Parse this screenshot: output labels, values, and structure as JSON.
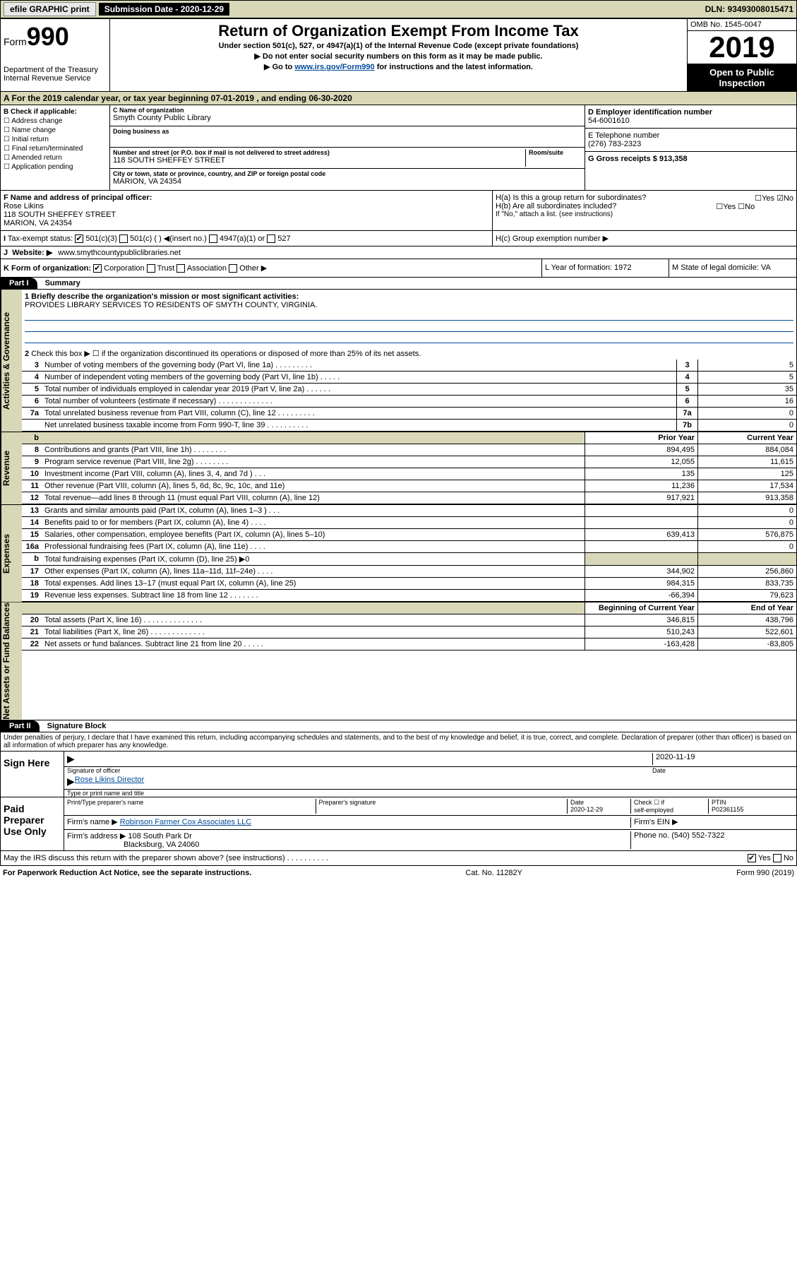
{
  "topbar": {
    "efile": "efile GRAPHIC print",
    "subdate_lbl": "Submission Date - 2020-12-29",
    "dln": "DLN: 93493008015471"
  },
  "header": {
    "form_prefix": "Form",
    "form_num": "990",
    "dept": "Department of the Treasury Internal Revenue Service",
    "title": "Return of Organization Exempt From Income Tax",
    "sub1": "Under section 501(c), 527, or 4947(a)(1) of the Internal Revenue Code (except private foundations)",
    "sub2": "▶ Do not enter social security numbers on this form as it may be made public.",
    "sub3_pre": "▶ Go to ",
    "sub3_link": "www.irs.gov/Form990",
    "sub3_post": " for instructions and the latest information.",
    "omb": "OMB No. 1545-0047",
    "year": "2019",
    "opi": "Open to Public Inspection"
  },
  "period": "A For the 2019 calendar year, or tax year beginning 07-01-2019    , and ending 06-30-2020",
  "sectionB": {
    "hdr": "B Check if applicable:",
    "items": [
      "Address change",
      "Name change",
      "Initial return",
      "Final return/terminated",
      "Amended return",
      "Application pending"
    ]
  },
  "sectionC": {
    "name_lbl": "C Name of organization",
    "name": "Smyth County Public Library",
    "dba_lbl": "Doing business as",
    "addr_lbl": "Number and street (or P.O. box if mail is not delivered to street address)",
    "room_lbl": "Room/suite",
    "addr": "118 SOUTH SHEFFEY STREET",
    "city_lbl": "City or town, state or province, country, and ZIP or foreign postal code",
    "city": "MARION, VA  24354"
  },
  "sectionD": {
    "lbl": "D Employer identification number",
    "val": "54-6001610"
  },
  "sectionE": {
    "lbl": "E Telephone number",
    "val": "(276) 783-2323"
  },
  "sectionG": {
    "lbl": "G Gross receipts $ 913,358"
  },
  "sectionF": {
    "lbl": "F  Name and address of principal officer:",
    "name": "Rose Likins",
    "addr1": "118 SOUTH SHEFFEY STREET",
    "addr2": "MARION, VA  24354"
  },
  "sectionH": {
    "a": "H(a)  Is this a group return for subordinates?",
    "b": "H(b)  Are all subordinates included?",
    "b_note": "If \"No,\" attach a list. (see instructions)",
    "c": "H(c)  Group exemption number ▶"
  },
  "sectionI": {
    "lbl": "Tax-exempt status:",
    "c3": "501(c)(3)",
    "c": "501(c) (   ) ◀(insert no.)",
    "a1": "4947(a)(1) or",
    "s527": "527"
  },
  "sectionJ": {
    "lbl": "Website: ▶",
    "val": "www.smythcountypubliclibraries.net"
  },
  "sectionK": {
    "lbl": "K Form of organization:",
    "corp": "Corporation",
    "trust": "Trust",
    "assoc": "Association",
    "other": "Other ▶"
  },
  "sectionL": {
    "lbl": "L Year of formation: 1972"
  },
  "sectionM": {
    "lbl": "M State of legal domicile: VA"
  },
  "part1": {
    "hdr": "Part I",
    "title": "Summary",
    "l1_lbl": "1  Briefly describe the organization's mission or most significant activities:",
    "l1_val": "PROVIDES LIBRARY SERVICES TO RESIDENTS OF SMYTH COUNTY, VIRGINIA.",
    "l2": "Check this box ▶ ☐  if the organization discontinued its operations or disposed of more than 25% of its net assets.",
    "lines_gov": [
      {
        "n": "3",
        "d": "Number of voting members of the governing body (Part VI, line 1a)   .    .    .    .    .    .    .    .    .",
        "box": "3",
        "v": "5"
      },
      {
        "n": "4",
        "d": "Number of independent voting members of the governing body (Part VI, line 1b)    .    .    .    .    .",
        "box": "4",
        "v": "5"
      },
      {
        "n": "5",
        "d": "Total number of individuals employed in calendar year 2019 (Part V, line 2a)    .    .    .    .    .    .",
        "box": "5",
        "v": "35"
      },
      {
        "n": "6",
        "d": "Total number of volunteers (estimate if necessary)    .    .    .    .    .    .    .    .    .    .    .    .    .",
        "box": "6",
        "v": "16"
      },
      {
        "n": "7a",
        "d": "Total unrelated business revenue from Part VIII, column (C), line 12    .    .    .    .    .    .    .    .    .",
        "box": "7a",
        "v": "0"
      },
      {
        "n": "",
        "d": "Net unrelated business taxable income from Form 990-T, line 39    .    .    .    .    .    .    .    .    .    .",
        "box": "7b",
        "v": "0"
      }
    ],
    "col_hdrs": {
      "b": "b",
      "prior": "Prior Year",
      "current": "Current Year"
    },
    "lines_rev": [
      {
        "n": "8",
        "d": "Contributions and grants (Part VIII, line 1h)    .    .    .    .    .    .    .    .",
        "p": "894,495",
        "c": "884,084"
      },
      {
        "n": "9",
        "d": "Program service revenue (Part VIII, line 2g)    .    .    .    .    .    .    .    .",
        "p": "12,055",
        "c": "11,615"
      },
      {
        "n": "10",
        "d": "Investment income (Part VIII, column (A), lines 3, 4, and 7d )    .    .    .",
        "p": "135",
        "c": "125"
      },
      {
        "n": "11",
        "d": "Other revenue (Part VIII, column (A), lines 5, 6d, 8c, 9c, 10c, and 11e)",
        "p": "11,236",
        "c": "17,534"
      },
      {
        "n": "12",
        "d": "Total revenue—add lines 8 through 11 (must equal Part VIII, column (A), line 12)",
        "p": "917,921",
        "c": "913,358"
      }
    ],
    "lines_exp": [
      {
        "n": "13",
        "d": "Grants and similar amounts paid (Part IX, column (A), lines 1–3 )    .    .    .",
        "p": "",
        "c": "0"
      },
      {
        "n": "14",
        "d": "Benefits paid to or for members (Part IX, column (A), line 4)    .    .    .    .",
        "p": "",
        "c": "0"
      },
      {
        "n": "15",
        "d": "Salaries, other compensation, employee benefits (Part IX, column (A), lines 5–10)",
        "p": "639,413",
        "c": "576,875"
      },
      {
        "n": "16a",
        "d": "Professional fundraising fees (Part IX, column (A), line 11e)    .    .    .    .",
        "p": "",
        "c": "0"
      },
      {
        "n": "b",
        "d": "Total fundraising expenses (Part IX, column (D), line 25) ▶0",
        "p": "",
        "c": ""
      },
      {
        "n": "17",
        "d": "Other expenses (Part IX, column (A), lines 11a–11d, 11f–24e)    .    .    .    .",
        "p": "344,902",
        "c": "256,860"
      },
      {
        "n": "18",
        "d": "Total expenses. Add lines 13–17 (must equal Part IX, column (A), line 25)",
        "p": "984,315",
        "c": "833,735"
      },
      {
        "n": "19",
        "d": "Revenue less expenses. Subtract line 18 from line 12    .    .    .    .    .    .    .",
        "p": "-66,394",
        "c": "79,623"
      }
    ],
    "col_hdrs2": {
      "prior": "Beginning of Current Year",
      "current": "End of Year"
    },
    "lines_net": [
      {
        "n": "20",
        "d": "Total assets (Part X, line 16)    .    .    .    .    .    .    .    .    .    .    .    .    .    .",
        "p": "346,815",
        "c": "438,796"
      },
      {
        "n": "21",
        "d": "Total liabilities (Part X, line 26)    .    .    .    .    .    .    .    .    .    .    .    .    .",
        "p": "510,243",
        "c": "522,601"
      },
      {
        "n": "22",
        "d": "Net assets or fund balances. Subtract line 21 from line 20    .    .    .    .    .",
        "p": "-163,428",
        "c": "-83,805"
      }
    ],
    "vtabs": {
      "gov": "Activities & Governance",
      "rev": "Revenue",
      "exp": "Expenses",
      "net": "Net Assets or Fund Balances"
    }
  },
  "part2": {
    "hdr": "Part II",
    "title": "Signature Block",
    "perjury": "Under penalties of perjury, I declare that I have examined this return, including accompanying schedules and statements, and to the best of my knowledge and belief, it is true, correct, and complete. Declaration of preparer (other than officer) is based on all information of which preparer has any knowledge.",
    "sign_here": "Sign Here",
    "sig_officer": "Signature of officer",
    "sig_date": "2020-11-19",
    "date_lbl": "Date",
    "typed_name": "Rose Likins  Director",
    "typed_lbl": "Type or print name and title",
    "paid": "Paid Preparer Use Only",
    "prep_name_lbl": "Print/Type preparer's name",
    "prep_sig_lbl": "Preparer's signature",
    "prep_date_lbl": "Date",
    "prep_date": "2020-12-29",
    "self_emp": "self-employed",
    "check_if": "Check ☐ if",
    "ptin_lbl": "PTIN",
    "ptin": "P02361155",
    "firm_name_lbl": "Firm's name     ▶",
    "firm_name": "Robinson Farmer Cox Associates LLC",
    "firm_ein_lbl": "Firm's EIN ▶",
    "firm_addr_lbl": "Firm's address ▶",
    "firm_addr": "108 South Park Dr",
    "firm_city": "Blacksburg, VA  24060",
    "phone_lbl": "Phone no. (540) 552-7322",
    "discuss": "May the IRS discuss this return with the preparer shown above? (see instructions)    .    .    .    .    .    .    .    .    .    .",
    "yes": "Yes",
    "no": "No"
  },
  "footer": {
    "pra": "For Paperwork Reduction Act Notice, see the separate instructions.",
    "cat": "Cat. No. 11282Y",
    "form": "Form 990 (2019)"
  }
}
